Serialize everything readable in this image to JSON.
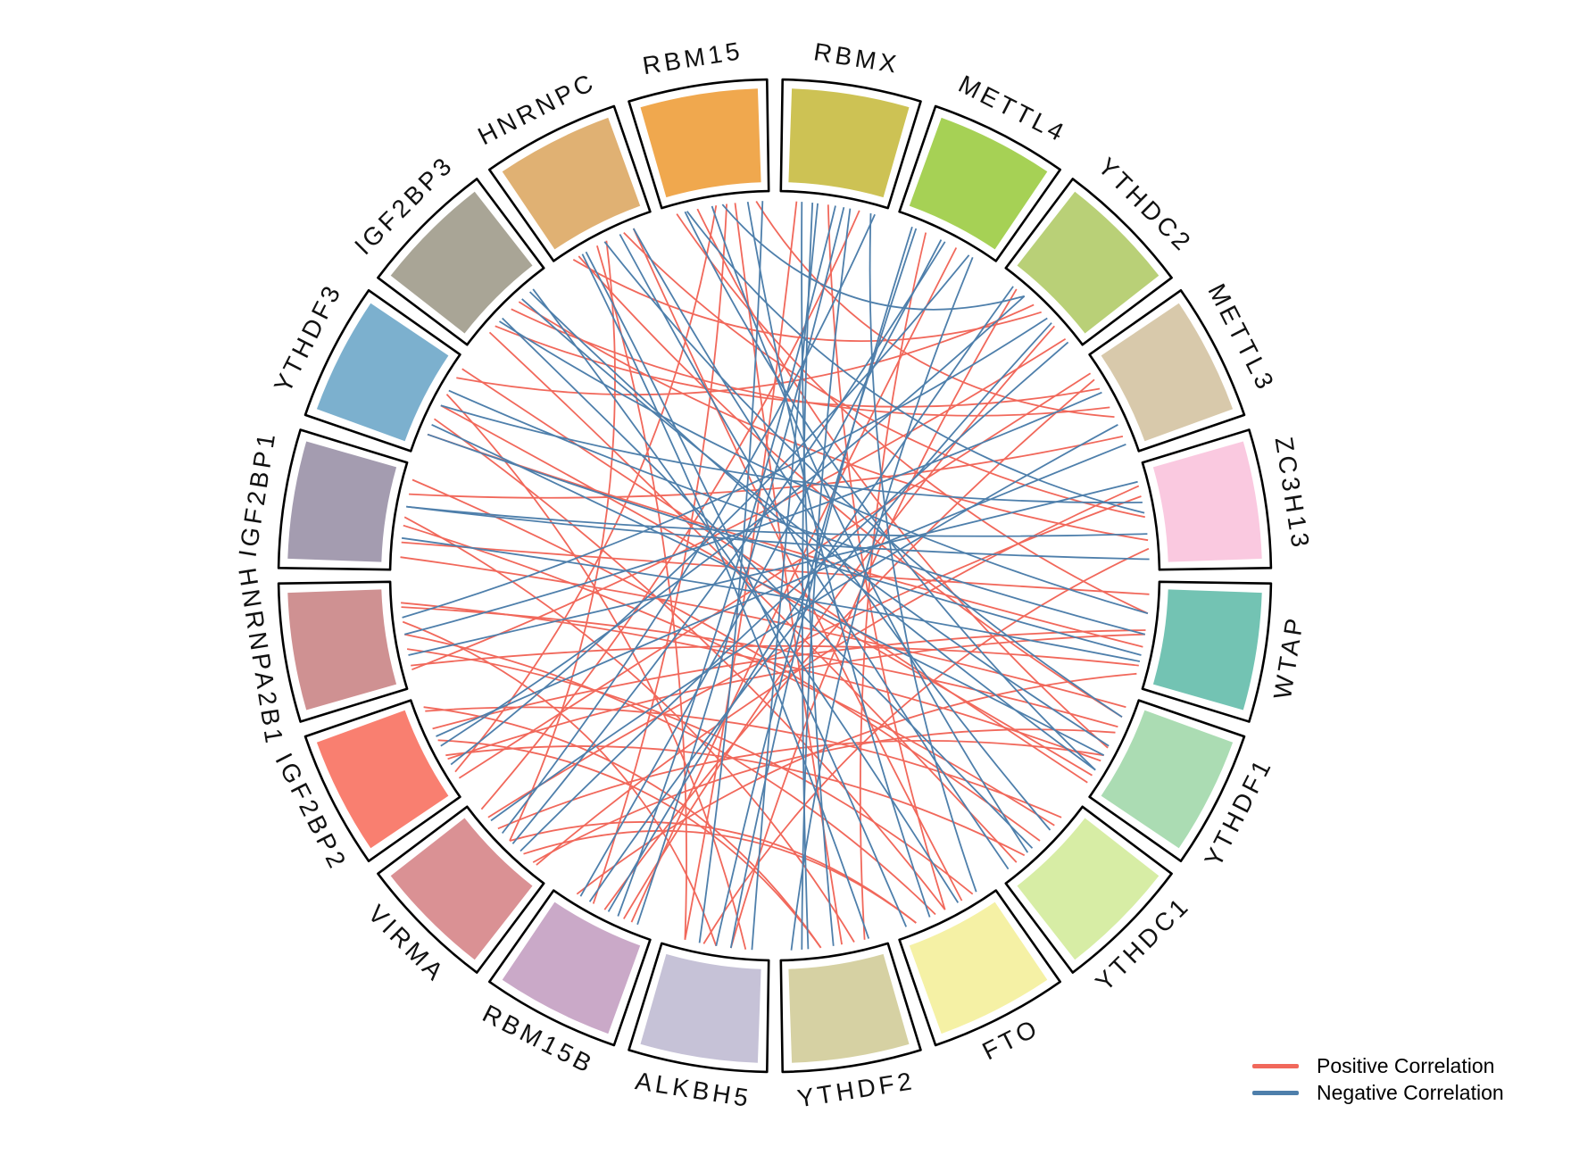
{
  "figure": {
    "background": "#ffffff",
    "description": "Circular chord diagram of correlations among m6A regulator genes"
  },
  "legend": {
    "items": [
      {
        "label": "Positive Correlation",
        "color": "#f1685b"
      },
      {
        "label": "Negative Correlation",
        "color": "#4e7fab"
      }
    ]
  },
  "chart_data": {
    "type": "chord",
    "sector_order_clockwise_from_top": true,
    "start_angle_deg": -90,
    "sectors": [
      {
        "label": "RBMX",
        "color": "#cdc254"
      },
      {
        "label": "METTL4",
        "color": "#a6d155"
      },
      {
        "label": "YTHDC2",
        "color": "#b9d077"
      },
      {
        "label": "METTL3",
        "color": "#d8c9ab"
      },
      {
        "label": "ZC3H13",
        "color": "#fac9e0"
      },
      {
        "label": "WTAP",
        "color": "#73c3b3"
      },
      {
        "label": "YTHDF1",
        "color": "#abdcb3"
      },
      {
        "label": "YTHDC1",
        "color": "#d7eda5"
      },
      {
        "label": "FTO",
        "color": "#f5f1a5"
      },
      {
        "label": "YTHDF2",
        "color": "#d6d1a3"
      },
      {
        "label": "ALKBH5",
        "color": "#c6c2d7"
      },
      {
        "label": "RBM15B",
        "color": "#caa9c8"
      },
      {
        "label": "VIRMA",
        "color": "#da9194"
      },
      {
        "label": "IGF2BP2",
        "color": "#f97f70"
      },
      {
        "label": "HNRNPA2B1",
        "color": "#cf9192"
      },
      {
        "label": "IGF2BP1",
        "color": "#a49cb0"
      },
      {
        "label": "YTHDF3",
        "color": "#7cb0ce"
      },
      {
        "label": "IGF2BP3",
        "color": "#a9a596"
      },
      {
        "label": "HNRNPC",
        "color": "#e0b173"
      },
      {
        "label": "RBM15",
        "color": "#f0a84e"
      }
    ],
    "link_colors": {
      "positive": "#f1685b",
      "negative": "#4e7fab"
    },
    "links_format": [
      "source_index",
      "source_offset",
      "target_index",
      "target_offset",
      "sign(1=positive,0=negative)"
    ],
    "links": [
      [
        19,
        0.12,
        5,
        0.3,
        1
      ],
      [
        19,
        0.32,
        6,
        0.52,
        1
      ],
      [
        19,
        0.5,
        13,
        0.22,
        1
      ],
      [
        19,
        0.68,
        9,
        0.42,
        1
      ],
      [
        19,
        0.88,
        3,
        0.62,
        1
      ],
      [
        18,
        0.22,
        6,
        0.2,
        1
      ],
      [
        18,
        0.52,
        12,
        0.5,
        1
      ],
      [
        18,
        0.8,
        8,
        0.32,
        1
      ],
      [
        17,
        0.3,
        3,
        0.32,
        1
      ],
      [
        17,
        0.62,
        4,
        0.72,
        1
      ],
      [
        16,
        0.2,
        5,
        0.62,
        1
      ],
      [
        16,
        0.5,
        6,
        0.82,
        1
      ],
      [
        16,
        0.8,
        2,
        0.42,
        1
      ],
      [
        15,
        0.12,
        6,
        0.1,
        1
      ],
      [
        15,
        0.42,
        7,
        0.3,
        1
      ],
      [
        15,
        0.72,
        3,
        0.82,
        1
      ],
      [
        14,
        0.2,
        5,
        0.8,
        1
      ],
      [
        14,
        0.5,
        8,
        0.6,
        1
      ],
      [
        14,
        0.8,
        6,
        0.66,
        1
      ],
      [
        13,
        0.15,
        3,
        0.15,
        1
      ],
      [
        13,
        0.4,
        7,
        0.7,
        1
      ],
      [
        13,
        0.68,
        5,
        0.46,
        1
      ],
      [
        13,
        0.9,
        9,
        0.62,
        1
      ],
      [
        12,
        0.2,
        6,
        0.36,
        1
      ],
      [
        12,
        0.5,
        8,
        0.8,
        1
      ],
      [
        12,
        0.8,
        4,
        0.3,
        1
      ],
      [
        11,
        0.3,
        2,
        0.7,
        1
      ],
      [
        11,
        0.62,
        19,
        0.6,
        1
      ],
      [
        10,
        0.22,
        16,
        0.62,
        1
      ],
      [
        10,
        0.5,
        14,
        0.62,
        1
      ],
      [
        10,
        0.8,
        18,
        0.42,
        1
      ],
      [
        9,
        0.3,
        15,
        0.5,
        1
      ],
      [
        9,
        0.62,
        13,
        0.56,
        1
      ],
      [
        8,
        0.2,
        14,
        0.36,
        1
      ],
      [
        8,
        0.5,
        16,
        0.36,
        1
      ],
      [
        8,
        0.8,
        12,
        0.32,
        1
      ],
      [
        7,
        0.2,
        13,
        0.86,
        1
      ],
      [
        7,
        0.5,
        15,
        0.86,
        1
      ],
      [
        7,
        0.8,
        17,
        0.22,
        1
      ],
      [
        6,
        0.3,
        14,
        0.76,
        1
      ],
      [
        6,
        0.6,
        12,
        0.66,
        1
      ],
      [
        6,
        0.9,
        16,
        0.9,
        1
      ],
      [
        5,
        0.12,
        15,
        0.26,
        1
      ],
      [
        5,
        0.5,
        13,
        0.36,
        1
      ],
      [
        5,
        0.88,
        11,
        0.8,
        1
      ],
      [
        4,
        0.2,
        12,
        0.16,
        1
      ],
      [
        4,
        0.5,
        18,
        0.7,
        1
      ],
      [
        4,
        0.8,
        10,
        0.62,
        1
      ],
      [
        3,
        0.22,
        11,
        0.5,
        1
      ],
      [
        3,
        0.52,
        17,
        0.52,
        1
      ],
      [
        2,
        0.2,
        10,
        0.36,
        1
      ],
      [
        2,
        0.52,
        18,
        0.16,
        1
      ],
      [
        2,
        0.86,
        14,
        0.16,
        1
      ],
      [
        1,
        0.3,
        9,
        0.2,
        1
      ],
      [
        1,
        0.62,
        11,
        0.22,
        1
      ],
      [
        0,
        0.15,
        10,
        0.8,
        1
      ],
      [
        0,
        0.45,
        8,
        0.5,
        1
      ],
      [
        0,
        0.75,
        12,
        0.9,
        1
      ],
      [
        0,
        0.2,
        9,
        0.5,
        0
      ],
      [
        0,
        0.35,
        10,
        0.16,
        0
      ],
      [
        0,
        0.52,
        11,
        0.36,
        0
      ],
      [
        0,
        0.66,
        9,
        0.8,
        0
      ],
      [
        0,
        0.86,
        8,
        0.16,
        0
      ],
      [
        1,
        0.2,
        10,
        0.5,
        0
      ],
      [
        1,
        0.5,
        12,
        0.46,
        0
      ],
      [
        1,
        0.8,
        9,
        0.9,
        0
      ],
      [
        2,
        0.3,
        13,
        0.5,
        0
      ],
      [
        2,
        0.66,
        11,
        0.66,
        0
      ],
      [
        3,
        0.36,
        14,
        0.5,
        0
      ],
      [
        3,
        0.7,
        12,
        0.76,
        0
      ],
      [
        4,
        0.36,
        16,
        0.5,
        0
      ],
      [
        4,
        0.66,
        15,
        0.6,
        0
      ],
      [
        5,
        0.3,
        17,
        0.36,
        0
      ],
      [
        5,
        0.7,
        16,
        0.2,
        0
      ],
      [
        6,
        0.2,
        18,
        0.5,
        0
      ],
      [
        6,
        0.5,
        17,
        0.66,
        0
      ],
      [
        6,
        0.76,
        19,
        0.2,
        0
      ],
      [
        7,
        0.36,
        18,
        0.8,
        0
      ],
      [
        7,
        0.66,
        19,
        0.46,
        0
      ],
      [
        8,
        0.36,
        17,
        0.8,
        0
      ],
      [
        8,
        0.66,
        19,
        0.8,
        0
      ],
      [
        9,
        0.16,
        18,
        0.26,
        0
      ],
      [
        9,
        0.74,
        0,
        0.3,
        0
      ],
      [
        10,
        0.36,
        1,
        0.16,
        0
      ],
      [
        10,
        0.66,
        19,
        0.94,
        0
      ],
      [
        11,
        0.16,
        0,
        0.6,
        0
      ],
      [
        11,
        0.46,
        2,
        0.16,
        0
      ],
      [
        11,
        0.76,
        1,
        0.46,
        0
      ],
      [
        12,
        0.36,
        2,
        0.9,
        0
      ],
      [
        12,
        0.6,
        0,
        0.9,
        0
      ],
      [
        13,
        0.3,
        1,
        0.76,
        0
      ],
      [
        13,
        0.6,
        3,
        0.9,
        0
      ],
      [
        14,
        0.3,
        4,
        0.16,
        0
      ],
      [
        14,
        0.66,
        2,
        0.6,
        0
      ],
      [
        15,
        0.3,
        5,
        0.76,
        0
      ],
      [
        15,
        0.6,
        4,
        0.9,
        0
      ],
      [
        16,
        0.3,
        6,
        0.6,
        0
      ],
      [
        16,
        0.66,
        5,
        0.5,
        0
      ],
      [
        17,
        0.4,
        7,
        0.6,
        0
      ],
      [
        17,
        0.76,
        6,
        0.76,
        0
      ],
      [
        18,
        0.3,
        8,
        0.9,
        0
      ],
      [
        18,
        0.66,
        7,
        0.9,
        0
      ],
      [
        19,
        0.22,
        4,
        0.46,
        0
      ],
      [
        19,
        0.56,
        2,
        0.3,
        0
      ]
    ],
    "legend_position": "bottom-right"
  }
}
